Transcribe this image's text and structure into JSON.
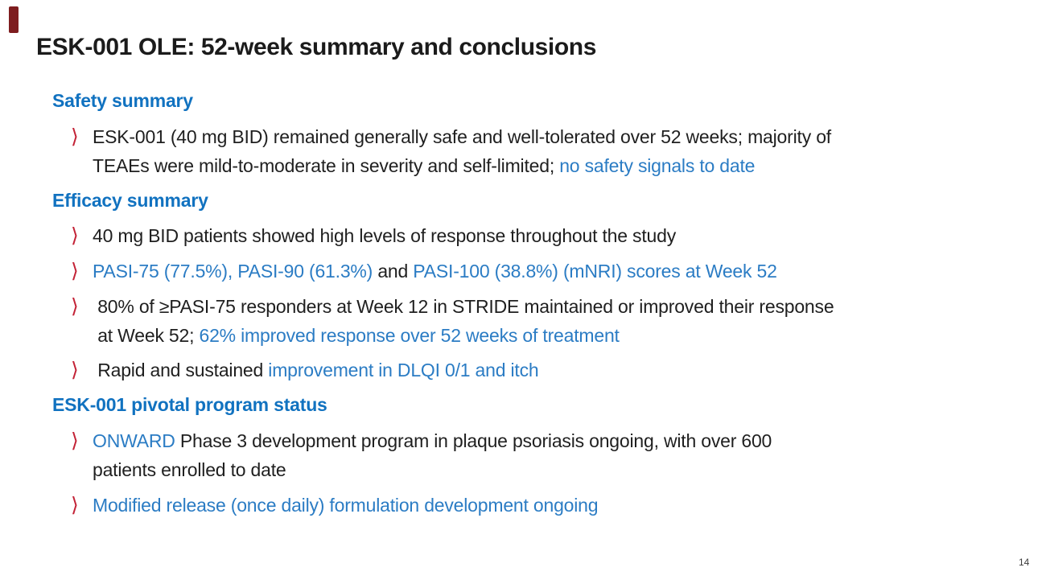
{
  "slide": {
    "title": "ESK-001 OLE: 52-week summary and conclusions",
    "page_number": "14",
    "bullet_glyph": "⟩",
    "colors": {
      "accent_bar_maroon": "#7e1d1f",
      "heading_blue": "#1172c0",
      "inline_blue": "#2b7cc4",
      "chevron_red": "#c32236",
      "body_text": "#1f1f1f"
    },
    "sections": [
      {
        "heading": "Safety summary",
        "bullets": [
          {
            "segments": [
              {
                "text": "ESK-001 (40 mg BID) remained generally safe and well-tolerated over 52 weeks; majority of\nTEAEs were mild-to-moderate in severity and self-limited; ",
                "color": "black"
              },
              {
                "text": "no safety signals to date",
                "color": "blue"
              }
            ]
          }
        ]
      },
      {
        "heading": "Efficacy summary",
        "bullets": [
          {
            "segments": [
              {
                "text": "40 mg BID patients showed high levels of response throughout the study",
                "color": "black"
              }
            ]
          },
          {
            "segments": [
              {
                "text": "PASI-75 (77.5%), PASI-90 (61.3%) ",
                "color": "blue"
              },
              {
                "text": "and ",
                "color": "black"
              },
              {
                "text": "PASI-100 (38.8%) (mNRI) scores at Week 52",
                "color": "blue"
              }
            ]
          },
          {
            "segments": [
              {
                "text": " 80% of ≥PASI-75 responders at Week 12 in STRIDE maintained or improved their response\n at Week 52; ",
                "color": "black"
              },
              {
                "text": "62% improved response over 52 weeks of treatment",
                "color": "blue"
              }
            ]
          },
          {
            "segments": [
              {
                "text": " Rapid and sustained ",
                "color": "black"
              },
              {
                "text": "improvement in DLQI 0/1 and itch",
                "color": "blue"
              }
            ]
          }
        ]
      },
      {
        "heading": "ESK-001 pivotal program status",
        "bullets": [
          {
            "segments": [
              {
                "text": "ONWARD ",
                "color": "blue"
              },
              {
                "text": "Phase 3 development program in plaque psoriasis ongoing, with over 600\npatients enrolled to date",
                "color": "black"
              }
            ]
          },
          {
            "segments": [
              {
                "text": "Modified release (once daily) formulation development ongoing",
                "color": "blue"
              }
            ]
          }
        ]
      }
    ]
  }
}
